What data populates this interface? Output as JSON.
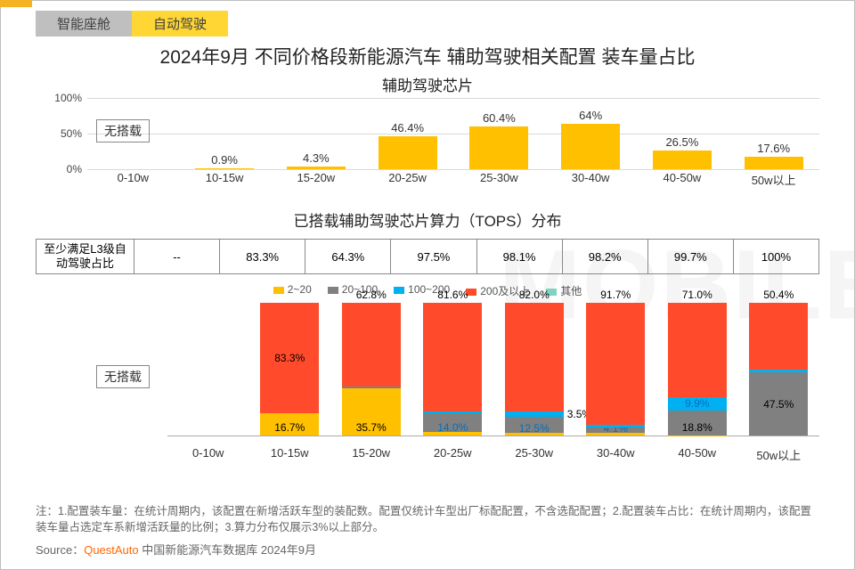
{
  "tabs": {
    "inactive": "智能座舱",
    "active": "自动驾驶"
  },
  "title": "2024年9月 不同价格段新能源汽车 辅助驾驶相关配置 装车量占比",
  "subtitle1": "辅助驾驶芯片",
  "wuzai_label": "无搭载",
  "price_segments": [
    "0-10w",
    "10-15w",
    "15-20w",
    "20-25w",
    "25-30w",
    "30-40w",
    "40-50w",
    "50w以上"
  ],
  "chart1": {
    "type": "bar",
    "yticks": [
      "0%",
      "50%",
      "100%"
    ],
    "values": [
      null,
      0.9,
      4.3,
      46.4,
      60.4,
      64.0,
      26.5,
      17.6
    ],
    "bar_color": "#ffc000",
    "ylim": [
      0,
      100
    ]
  },
  "subtitle2": "已搭载辅助驾驶芯片算力（TOPS）分布",
  "l3_row": {
    "header": "至少满足L3级自动驾驶占比",
    "values": [
      "--",
      "83.3%",
      "64.3%",
      "97.5%",
      "98.1%",
      "98.2%",
      "99.7%",
      "100%"
    ]
  },
  "legend": [
    {
      "label": "2~20",
      "color": "#ffc000"
    },
    {
      "label": "20~100",
      "color": "#808080"
    },
    {
      "label": "100~200",
      "color": "#00b0f0"
    },
    {
      "label": "200及以上",
      "color": "#ff4b2b"
    },
    {
      "label": "其他",
      "color": "#7fd4c1"
    }
  ],
  "chart2": {
    "type": "stacked-bar",
    "max_height_pct": 100,
    "columns": [
      {
        "total": 0,
        "segs": []
      },
      {
        "total": 100,
        "segs": [
          {
            "c": "#ffc000",
            "v": 16.7,
            "lbl": "16.7%",
            "pos": "in-bottom"
          },
          {
            "c": "#ff4b2b",
            "v": 83.3,
            "lbl": "83.3%",
            "pos": "in-mid"
          }
        ]
      },
      {
        "total": 100,
        "segs": [
          {
            "c": "#ffc000",
            "v": 35.7,
            "lbl": "35.7%",
            "pos": "in-bottom"
          },
          {
            "c": "#808080",
            "v": 1.5,
            "lbl": "",
            "pos": ""
          },
          {
            "c": "#ff4b2b",
            "v": 62.8,
            "lbl": "62.8%",
            "pos": "above"
          }
        ]
      },
      {
        "total": 100,
        "segs": [
          {
            "c": "#ffc000",
            "v": 2.5,
            "lbl": "",
            "pos": ""
          },
          {
            "c": "#808080",
            "v": 14.0,
            "lbl": "14.0%",
            "pos": "in-bottom-blue"
          },
          {
            "c": "#00b0f0",
            "v": 1.9,
            "lbl": "",
            "pos": ""
          },
          {
            "c": "#ff4b2b",
            "v": 81.6,
            "lbl": "81.6%",
            "pos": "above"
          }
        ]
      },
      {
        "total": 100,
        "segs": [
          {
            "c": "#ffc000",
            "v": 1.9,
            "lbl": "",
            "pos": ""
          },
          {
            "c": "#808080",
            "v": 12.5,
            "lbl": "12.5%",
            "pos": "in-bottom-blue"
          },
          {
            "c": "#00b0f0",
            "v": 3.5,
            "lbl": "3.5%",
            "pos": "right-mid"
          },
          {
            "c": "#ff4b2b",
            "v": 82.0,
            "lbl": "82.0%",
            "pos": "above"
          }
        ]
      },
      {
        "total": 100,
        "segs": [
          {
            "c": "#ffc000",
            "v": 1.8,
            "lbl": "",
            "pos": ""
          },
          {
            "c": "#808080",
            "v": 4.1,
            "lbl": "4.1%",
            "pos": "in-bottom-blue"
          },
          {
            "c": "#00b0f0",
            "v": 2.4,
            "lbl": "",
            "pos": ""
          },
          {
            "c": "#ff4b2b",
            "v": 91.7,
            "lbl": "91.7%",
            "pos": "above"
          }
        ]
      },
      {
        "total": 100,
        "segs": [
          {
            "c": "#ffc000",
            "v": 0.3,
            "lbl": "",
            "pos": ""
          },
          {
            "c": "#808080",
            "v": 18.8,
            "lbl": "18.8%",
            "pos": "in-bottom"
          },
          {
            "c": "#00b0f0",
            "v": 9.9,
            "lbl": "9.9%",
            "pos": "in-mid-blue"
          },
          {
            "c": "#ff4b2b",
            "v": 71.0,
            "lbl": "71.0%",
            "pos": "above"
          }
        ]
      },
      {
        "total": 100,
        "segs": [
          {
            "c": "#808080",
            "v": 47.5,
            "lbl": "47.5%",
            "pos": "in-mid"
          },
          {
            "c": "#00b0f0",
            "v": 2.1,
            "lbl": "",
            "pos": ""
          },
          {
            "c": "#ff4b2b",
            "v": 50.4,
            "lbl": "50.4%",
            "pos": "above"
          }
        ]
      }
    ]
  },
  "notes": "注：1.配置装车量：在统计周期内，该配置在新增活跃车型的装配数。配置仅统计车型出厂标配配置，不含选配配置；2.配置装车占比：在统计周期内，该配置装车量占选定车系新增活跃量的比例；3.算力分布仅展示3%以上部分。",
  "source_prefix": "Source：",
  "source_brand": "QuestAuto",
  "source_suffix": "  中国新能源汽车数据库 2024年9月",
  "watermark": "MOBILE"
}
